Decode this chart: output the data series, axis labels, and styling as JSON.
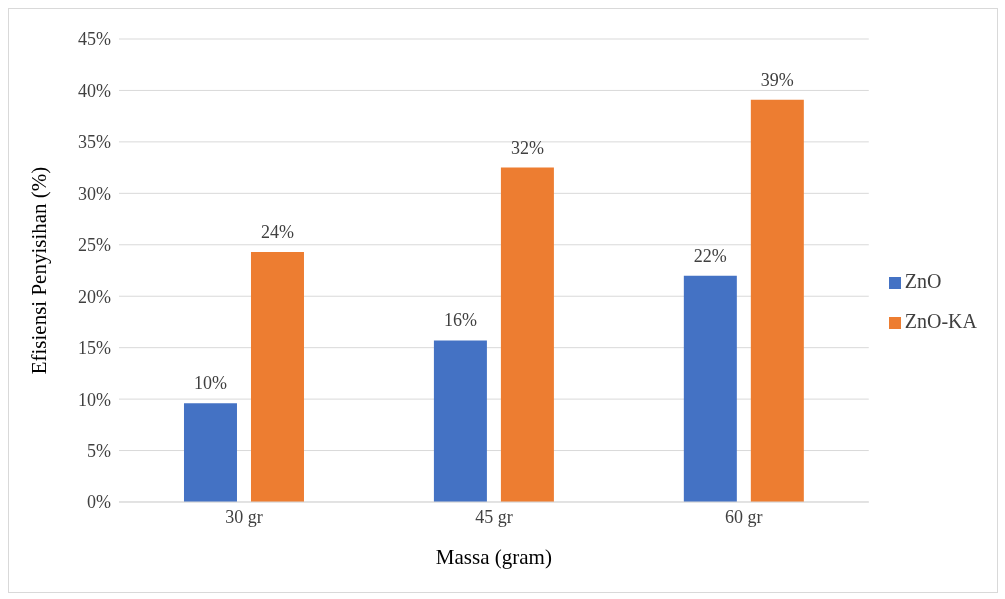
{
  "chart_data": {
    "type": "bar",
    "xlabel": "Massa (gram)",
    "ylabel": "Efisiensi Penyisihan (%)",
    "categories": [
      "30 gr",
      "45 gr",
      "60 gr"
    ],
    "series": [
      {
        "name": "ZnO",
        "color": "#4472c4",
        "values": [
          9.6,
          15.7,
          22.0
        ],
        "value_labels": [
          "10%",
          "16%",
          "22%"
        ]
      },
      {
        "name": "ZnO-KA",
        "color": "#ed7d31",
        "values": [
          24.3,
          32.5,
          39.1
        ],
        "value_labels": [
          "24%",
          "32%",
          "39%"
        ]
      }
    ],
    "ylim": [
      0,
      45
    ],
    "yticks": [
      {
        "value": 0,
        "label": "0%"
      },
      {
        "value": 5,
        "label": "5%"
      },
      {
        "value": 10,
        "label": "10%"
      },
      {
        "value": 15,
        "label": "15%"
      },
      {
        "value": 20,
        "label": "20%"
      },
      {
        "value": 25,
        "label": "25%"
      },
      {
        "value": 30,
        "label": "30%"
      },
      {
        "value": 35,
        "label": "35%"
      },
      {
        "value": 40,
        "label": "40%"
      },
      {
        "value": 45,
        "label": "45%"
      }
    ],
    "grid": "y",
    "legend": "right"
  }
}
